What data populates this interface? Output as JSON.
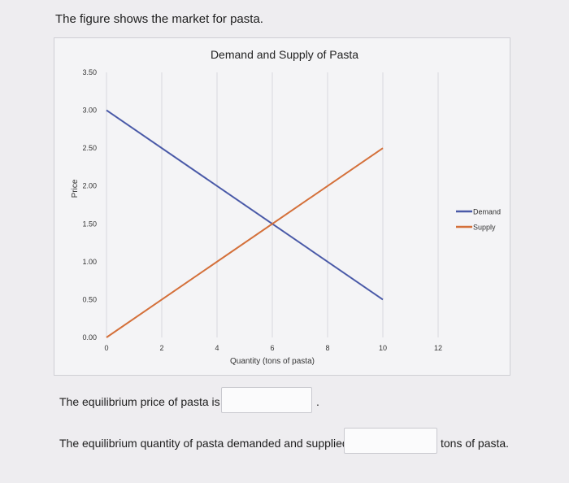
{
  "intro": "The figure shows the market for pasta.",
  "questions": {
    "price_prompt": "The equilibrium price of pasta is $",
    "price_suffix": ".",
    "price_value": "",
    "quantity_prompt": "The equilibrium quantity of pasta demanded and supplied is",
    "quantity_value": "",
    "quantity_suffix": "tons of pasta."
  },
  "chart_data": {
    "type": "line",
    "title": "Demand and Supply of Pasta",
    "xlabel": "Quantity (tons of pasta)",
    "ylabel": "Price",
    "xlim": [
      0,
      12
    ],
    "ylim": [
      0,
      3.5
    ],
    "x_ticks": [
      "0",
      "2",
      "4",
      "6",
      "8",
      "10",
      "12"
    ],
    "y_ticks": [
      "0.00",
      "0.50",
      "1.00",
      "1.50",
      "2.00",
      "2.50",
      "3.00",
      "3.50"
    ],
    "grid": "vertical",
    "legend_position": "right",
    "series": [
      {
        "name": "Demand",
        "color": "#4a5aa8",
        "points": [
          [
            0,
            3.0
          ],
          [
            10,
            0.5
          ]
        ]
      },
      {
        "name": "Supply",
        "color": "#d4703a",
        "points": [
          [
            0,
            0.0
          ],
          [
            10,
            2.5
          ]
        ]
      }
    ]
  }
}
